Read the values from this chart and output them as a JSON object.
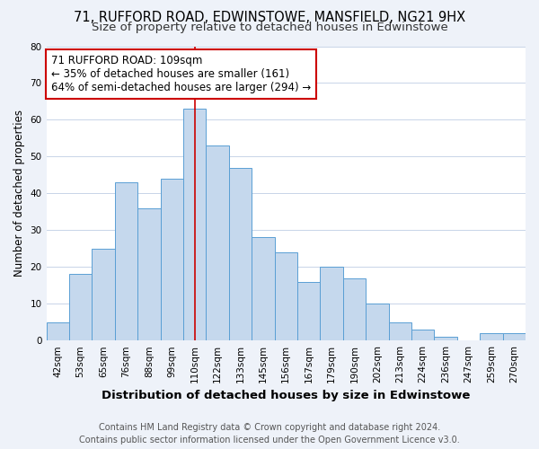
{
  "title": "71, RUFFORD ROAD, EDWINSTOWE, MANSFIELD, NG21 9HX",
  "subtitle": "Size of property relative to detached houses in Edwinstowe",
  "xlabel": "Distribution of detached houses by size in Edwinstowe",
  "ylabel": "Number of detached properties",
  "bar_labels": [
    "42sqm",
    "53sqm",
    "65sqm",
    "76sqm",
    "88sqm",
    "99sqm",
    "110sqm",
    "122sqm",
    "133sqm",
    "145sqm",
    "156sqm",
    "167sqm",
    "179sqm",
    "190sqm",
    "202sqm",
    "213sqm",
    "224sqm",
    "236sqm",
    "247sqm",
    "259sqm",
    "270sqm"
  ],
  "bar_heights": [
    5,
    18,
    25,
    43,
    36,
    44,
    63,
    53,
    47,
    28,
    24,
    16,
    20,
    17,
    10,
    5,
    3,
    1,
    0,
    2,
    2
  ],
  "bar_color": "#c5d8ed",
  "bar_edge_color": "#5a9fd4",
  "vline_x_index": 6,
  "vline_color": "#cc0000",
  "annotation_title": "71 RUFFORD ROAD: 109sqm",
  "annotation_line1": "← 35% of detached houses are smaller (161)",
  "annotation_line2": "64% of semi-detached houses are larger (294) →",
  "annotation_box_color": "#ffffff",
  "annotation_box_edge": "#cc0000",
  "ylim": [
    0,
    80
  ],
  "yticks": [
    0,
    10,
    20,
    30,
    40,
    50,
    60,
    70,
    80
  ],
  "footer_line1": "Contains HM Land Registry data © Crown copyright and database right 2024.",
  "footer_line2": "Contains public sector information licensed under the Open Government Licence v3.0.",
  "bg_color": "#eef2f9",
  "plot_bg_color": "#ffffff",
  "grid_color": "#c8d4e8",
  "title_fontsize": 10.5,
  "subtitle_fontsize": 9.5,
  "xlabel_fontsize": 9.5,
  "ylabel_fontsize": 8.5,
  "tick_fontsize": 7.5,
  "footer_fontsize": 7,
  "ann_fontsize": 8.5
}
